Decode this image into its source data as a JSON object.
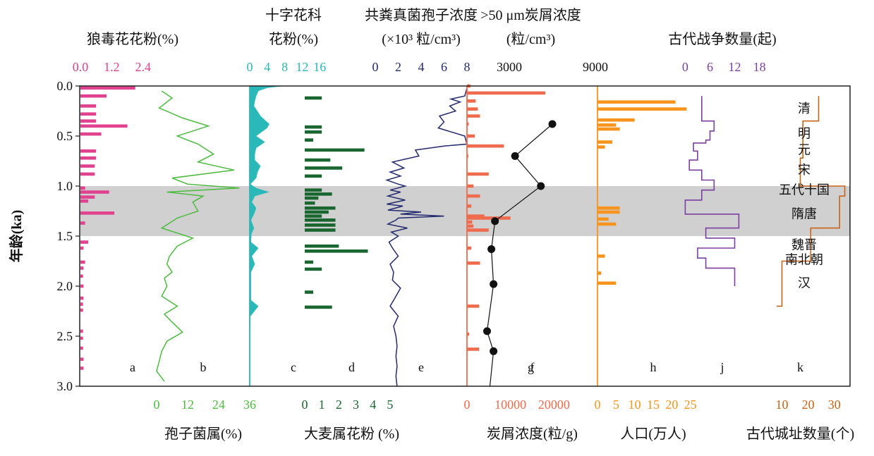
{
  "chart_data": {
    "type": "line",
    "y_axis": {
      "label": "年龄(ka)",
      "range": [
        0.0,
        3.0
      ],
      "ticks": [
        "0.0",
        "0.5",
        "1.0",
        "1.5",
        "2.0",
        "2.5",
        "3.0"
      ]
    },
    "highlight_band": {
      "from": 1.0,
      "to": 1.5,
      "color": "#d0d0d0"
    },
    "panels": [
      {
        "id": "a",
        "letter": "a",
        "type": "bar",
        "label_lines": [
          "狼毒花花粉(%)"
        ],
        "axis_side": "top",
        "range": [
          0,
          4.0
        ],
        "ticks": [
          "0.0",
          "1.2",
          "2.4"
        ],
        "color": "#e0428f",
        "age": [
          0.02,
          0.1,
          0.2,
          0.28,
          0.35,
          0.4,
          0.48,
          0.65,
          0.72,
          0.8,
          0.88,
          1.02,
          1.06,
          1.11,
          1.15,
          1.27,
          1.37,
          1.56,
          1.62,
          1.76,
          1.82,
          1.9,
          2.0,
          2.12,
          2.18,
          2.24,
          2.45,
          2.52,
          2.62,
          2.73,
          2.82
        ],
        "values": [
          2.1,
          1.0,
          0.6,
          0.6,
          0.6,
          1.8,
          0.8,
          0.6,
          0.6,
          0.55,
          0.55,
          0.18,
          1.1,
          0.55,
          0.3,
          1.3,
          0.18,
          0.3,
          0.12,
          0.18,
          0.12,
          0.1,
          0.12,
          0.12,
          0.1,
          0.1,
          0.1,
          0.1,
          0.1,
          0.12,
          0.12
        ]
      },
      {
        "id": "b",
        "letter": "b",
        "type": "line",
        "label_lines": [
          "孢子菌属(%)"
        ],
        "axis_side": "bottom",
        "range": [
          0,
          36
        ],
        "ticks": [
          "0",
          "12",
          "24",
          "36"
        ],
        "color": "#4cbb3f",
        "age": [
          0.05,
          0.12,
          0.22,
          0.32,
          0.4,
          0.5,
          0.58,
          0.68,
          0.76,
          0.84,
          0.92,
          0.98,
          1.02,
          1.06,
          1.1,
          1.16,
          1.25,
          1.32,
          1.42,
          1.52,
          1.6,
          1.7,
          1.78,
          1.86,
          1.92,
          2.0,
          2.1,
          2.2,
          2.28,
          2.36,
          2.46,
          2.55,
          2.65,
          2.75,
          2.85,
          2.95
        ],
        "values": [
          2,
          6,
          1,
          10,
          20,
          8,
          16,
          22,
          16,
          30,
          6,
          12,
          32,
          4,
          18,
          14,
          16,
          8,
          2,
          14,
          8,
          5,
          4,
          6,
          3,
          4,
          2,
          8,
          3,
          6,
          10,
          4,
          2,
          1,
          0,
          3
        ]
      },
      {
        "id": "c",
        "letter": "c",
        "type": "area",
        "label_lines": [
          "十字花科",
          "花粉(%)"
        ],
        "axis_side": "top",
        "range": [
          0,
          20
        ],
        "ticks": [
          "0",
          "4",
          "8",
          "12",
          "16"
        ],
        "color": "#2ab8b8",
        "age": [
          0.0,
          0.02,
          0.05,
          0.1,
          0.15,
          0.2,
          0.3,
          0.38,
          0.42,
          0.5,
          0.56,
          0.62,
          0.68,
          0.74,
          0.8,
          0.86,
          0.92,
          0.98,
          1.02,
          1.06,
          1.1,
          1.16,
          1.22,
          1.28,
          1.34,
          1.42,
          1.48,
          1.56,
          1.62,
          1.7,
          1.78,
          1.86,
          1.94,
          2.02,
          2.08,
          2.14,
          2.2,
          2.3,
          2.5,
          2.7,
          3.0
        ],
        "values": [
          8,
          4,
          2,
          1.5,
          1.2,
          1.0,
          2.5,
          4.5,
          4.0,
          1.5,
          3.5,
          1.5,
          1.2,
          1.2,
          2.5,
          1.8,
          1.5,
          0.2,
          1.5,
          4.5,
          1.2,
          0.5,
          1.5,
          1.0,
          0.3,
          1.0,
          0.4,
          0.3,
          2.0,
          0.5,
          1.2,
          0.3,
          0.3,
          0.3,
          0.3,
          0.3,
          2.0,
          0.2,
          0.1,
          0.1,
          0.1
        ]
      },
      {
        "id": "d",
        "letter": "d",
        "type": "bar",
        "label_lines": [
          "大麦属花粉 (%)"
        ],
        "axis_side": "bottom",
        "range": [
          0,
          5.5
        ],
        "ticks": [
          "0",
          "1",
          "2",
          "3",
          "4",
          "5"
        ],
        "color": "#1a6630",
        "age": [
          0.12,
          0.41,
          0.46,
          0.54,
          0.64,
          0.74,
          0.82,
          0.9,
          1.04,
          1.08,
          1.12,
          1.17,
          1.22,
          1.26,
          1.3,
          1.34,
          1.39,
          1.44,
          1.6,
          1.65,
          1.76,
          1.83,
          2.06,
          2.21
        ],
        "values": [
          1.0,
          1.0,
          1.0,
          0.5,
          3.5,
          1.5,
          2.2,
          1.0,
          1.0,
          1.6,
          0.8,
          0.6,
          1.8,
          1.4,
          1.0,
          1.8,
          1.8,
          1.8,
          2.0,
          3.7,
          0.5,
          1.0,
          0.5,
          1.6
        ]
      },
      {
        "id": "e",
        "letter": "e",
        "type": "line",
        "label_lines": [
          "共粪真菌孢子浓度",
          "(×10³ 粒/cm³)"
        ],
        "axis_side": "top",
        "range": [
          0,
          8
        ],
        "ticks": [
          "0",
          "2",
          "4",
          "6",
          "8"
        ],
        "color": "#232a6e",
        "age": [
          0.02,
          0.1,
          0.13,
          0.16,
          0.2,
          0.25,
          0.3,
          0.36,
          0.42,
          0.5,
          0.58,
          0.6,
          0.64,
          0.7,
          0.76,
          0.82,
          0.86,
          0.9,
          0.94,
          0.98,
          1.0,
          1.04,
          1.06,
          1.1,
          1.14,
          1.18,
          1.2,
          1.24,
          1.26,
          1.28,
          1.3,
          1.32,
          1.34,
          1.38,
          1.42,
          1.46,
          1.5,
          1.56,
          1.62,
          1.7,
          1.78,
          1.86,
          1.94,
          2.02,
          2.1,
          2.2,
          2.3,
          2.4,
          2.5,
          2.6,
          2.7,
          2.8,
          2.9,
          3.0
        ],
        "values": [
          8,
          7.8,
          6.6,
          7.4,
          6.5,
          7.0,
          5.6,
          6.0,
          5.5,
          7.8,
          8.0,
          6.0,
          3.5,
          3.8,
          1.5,
          2.5,
          1.3,
          2.2,
          1.0,
          2.0,
          2.6,
          1.3,
          2.2,
          1.1,
          2.6,
          1.0,
          2.4,
          1.1,
          4.0,
          2.2,
          6.0,
          2.0,
          1.8,
          1.1,
          2.8,
          1.4,
          2.0,
          1.2,
          1.5,
          2.0,
          1.3,
          1.6,
          1.5,
          2.2,
          1.8,
          1.3,
          2.0,
          1.6,
          1.8,
          1.9,
          1.8,
          1.9,
          1.8,
          1.9
        ]
      },
      {
        "id": "f",
        "letter": "f",
        "type": "bar",
        "label_lines": [
          "炭屑浓度(粒/g)"
        ],
        "axis_side": "bottom",
        "range": [
          0,
          30000
        ],
        "ticks": [
          "0",
          "10000",
          "20000"
        ],
        "color": "#ee6b4d",
        "age": [
          0.0,
          0.07,
          0.15,
          0.23,
          0.3,
          0.38,
          0.5,
          0.6,
          0.7,
          0.88,
          1.0,
          1.1,
          1.2,
          1.3,
          1.32,
          1.36,
          1.4,
          1.44,
          1.62,
          1.77,
          2.2,
          2.48,
          2.63
        ],
        "values": [
          800,
          18000,
          2000,
          2500,
          3000,
          400,
          1800,
          8500,
          300,
          5000,
          1500,
          3000,
          1000,
          4000,
          10000,
          1200,
          1500,
          5000,
          1000,
          3000,
          2800,
          500,
          2800
        ]
      },
      {
        "id": "g",
        "letter": "g",
        "type": "scatter",
        "label_lines": [
          ">50 μm炭屑浓度",
          "(粒/cm³)"
        ],
        "axis_side": "top",
        "range": [
          0,
          9000
        ],
        "ticks": [
          "3000",
          "9000"
        ],
        "color": "#111111",
        "age": [
          0.38,
          0.7,
          1.0,
          1.35,
          1.63,
          1.98,
          2.45,
          2.65,
          3.0
        ],
        "values": [
          6000,
          3400,
          5200,
          2000,
          1750,
          1900,
          1450,
          1900,
          1650
        ]
      },
      {
        "id": "h",
        "letter": "h",
        "type": "bar",
        "label_lines": [
          "人口(万人)"
        ],
        "axis_side": "bottom",
        "range": [
          0,
          30
        ],
        "ticks": [
          "0",
          "5",
          "10",
          "15",
          "20",
          "25"
        ],
        "color": "#f7941d",
        "age": [
          0.16,
          0.23,
          0.34,
          0.39,
          0.43,
          0.56,
          0.61,
          1.22,
          1.26,
          1.33,
          1.38,
          1.7,
          1.87,
          1.97
        ],
        "values": [
          21,
          24,
          10,
          5,
          6,
          4,
          2,
          6,
          6,
          3,
          5,
          2,
          1,
          5
        ]
      },
      {
        "id": "j",
        "letter": "j",
        "type": "step",
        "label_lines": [
          "古代战争数量(起)"
        ],
        "axis_side": "top",
        "range": [
          -4,
          22
        ],
        "ticks": [
          "0",
          "6",
          "12",
          "18"
        ],
        "color": "#7b3fa0",
        "age": [
          0.1,
          0.35,
          0.45,
          0.54,
          0.57,
          0.65,
          0.74,
          0.84,
          0.94,
          1.04,
          1.14,
          1.22,
          1.28,
          1.42,
          1.52,
          1.62,
          1.72,
          1.82,
          1.96,
          2.0
        ],
        "values": [
          4,
          7,
          6,
          5,
          2,
          3,
          1,
          4,
          7,
          4,
          0,
          0,
          13,
          5,
          12,
          3,
          5,
          12,
          12,
          12
        ]
      },
      {
        "id": "k",
        "letter": "k",
        "type": "step",
        "label_lines": [
          "古代城址数量(个)"
        ],
        "axis_side": "bottom",
        "range": [
          -2,
          36
        ],
        "ticks": [
          "10",
          "20",
          "30"
        ],
        "color": "#c86418",
        "dynasties": [
          "清",
          "明",
          "元",
          "宋",
          "五代十国",
          "隋唐",
          "魏晋",
          "南北朝",
          "汉"
        ],
        "dynasty_age": [
          0.22,
          0.47,
          0.63,
          0.83,
          1.03,
          1.27,
          1.58,
          1.73,
          1.96
        ],
        "age": [
          0.1,
          0.35,
          0.72,
          1.0,
          1.1,
          1.42,
          1.75,
          2.2
        ],
        "values": [
          24,
          18,
          17,
          34,
          32,
          21,
          10,
          8
        ]
      }
    ]
  }
}
